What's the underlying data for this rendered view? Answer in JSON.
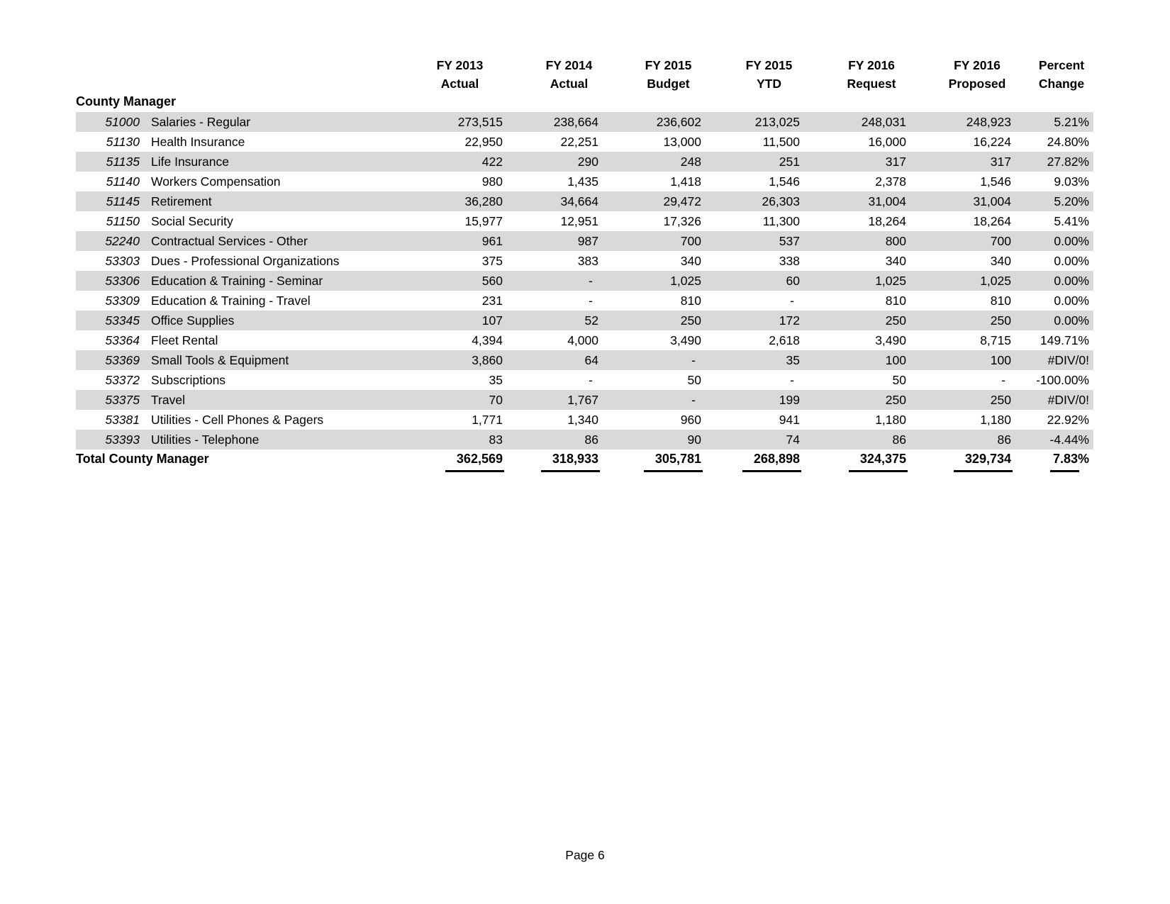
{
  "page": {
    "footer": "Page 6"
  },
  "colors": {
    "stripe": "#d9d9d9",
    "text": "#000000"
  },
  "table": {
    "section_title": "County Manager",
    "columns": [
      {
        "line1": "FY 2013",
        "line2": "Actual"
      },
      {
        "line1": "FY 2014",
        "line2": "Actual"
      },
      {
        "line1": "FY 2015",
        "line2": "Budget"
      },
      {
        "line1": "FY 2015",
        "line2": "YTD"
      },
      {
        "line1": "FY 2016",
        "line2": "Request"
      },
      {
        "line1": "FY 2016",
        "line2": "Proposed"
      },
      {
        "line1": "Percent",
        "line2": "Change"
      }
    ],
    "rows": [
      {
        "code": "51000",
        "label": "Salaries - Regular",
        "values": [
          "273,515",
          "238,664",
          "236,602",
          "213,025",
          "248,031",
          "248,923",
          "5.21%"
        ]
      },
      {
        "code": "51130",
        "label": "Health Insurance",
        "values": [
          "22,950",
          "22,251",
          "13,000",
          "11,500",
          "16,000",
          "16,224",
          "24.80%"
        ]
      },
      {
        "code": "51135",
        "label": "Life Insurance",
        "values": [
          "422",
          "290",
          "248",
          "251",
          "317",
          "317",
          "27.82%"
        ]
      },
      {
        "code": "51140",
        "label": "Workers Compensation",
        "values": [
          "980",
          "1,435",
          "1,418",
          "1,546",
          "2,378",
          "1,546",
          "9.03%"
        ]
      },
      {
        "code": "51145",
        "label": "Retirement",
        "values": [
          "36,280",
          "34,664",
          "29,472",
          "26,303",
          "31,004",
          "31,004",
          "5.20%"
        ]
      },
      {
        "code": "51150",
        "label": "Social Security",
        "values": [
          "15,977",
          "12,951",
          "17,326",
          "11,300",
          "18,264",
          "18,264",
          "5.41%"
        ]
      },
      {
        "code": "52240",
        "label": "Contractual Services - Other",
        "values": [
          "961",
          "987",
          "700",
          "537",
          "800",
          "700",
          "0.00%"
        ]
      },
      {
        "code": "53303",
        "label": "Dues - Professional Organizations",
        "values": [
          "375",
          "383",
          "340",
          "338",
          "340",
          "340",
          "0.00%"
        ]
      },
      {
        "code": "53306",
        "label": "Education & Training - Seminar",
        "values": [
          "560",
          "-",
          "1,025",
          "60",
          "1,025",
          "1,025",
          "0.00%"
        ]
      },
      {
        "code": "53309",
        "label": "Education & Training - Travel",
        "values": [
          "231",
          "-",
          "810",
          "-",
          "810",
          "810",
          "0.00%"
        ]
      },
      {
        "code": "53345",
        "label": "Office Supplies",
        "values": [
          "107",
          "52",
          "250",
          "172",
          "250",
          "250",
          "0.00%"
        ]
      },
      {
        "code": "53364",
        "label": "Fleet Rental",
        "values": [
          "4,394",
          "4,000",
          "3,490",
          "2,618",
          "3,490",
          "8,715",
          "149.71%"
        ]
      },
      {
        "code": "53369",
        "label": "Small Tools & Equipment",
        "values": [
          "3,860",
          "64",
          "-",
          "35",
          "100",
          "100",
          "#DIV/0!"
        ]
      },
      {
        "code": "53372",
        "label": "Subscriptions",
        "values": [
          "35",
          "-",
          "50",
          "-",
          "50",
          "-",
          "-100.00%"
        ]
      },
      {
        "code": "53375",
        "label": "Travel",
        "values": [
          "70",
          "1,767",
          "-",
          "199",
          "250",
          "250",
          "#DIV/0!"
        ]
      },
      {
        "code": "53381",
        "label": "Utilities - Cell Phones & Pagers",
        "values": [
          "1,771",
          "1,340",
          "960",
          "941",
          "1,180",
          "1,180",
          "22.92%"
        ]
      },
      {
        "code": "53393",
        "label": "Utilities - Telephone",
        "values": [
          "83",
          "86",
          "90",
          "74",
          "86",
          "86",
          "-4.44%"
        ]
      }
    ],
    "total": {
      "label": "Total County Manager",
      "values": [
        "362,569",
        "318,933",
        "305,781",
        "268,898",
        "324,375",
        "329,734",
        "7.83%"
      ]
    }
  }
}
